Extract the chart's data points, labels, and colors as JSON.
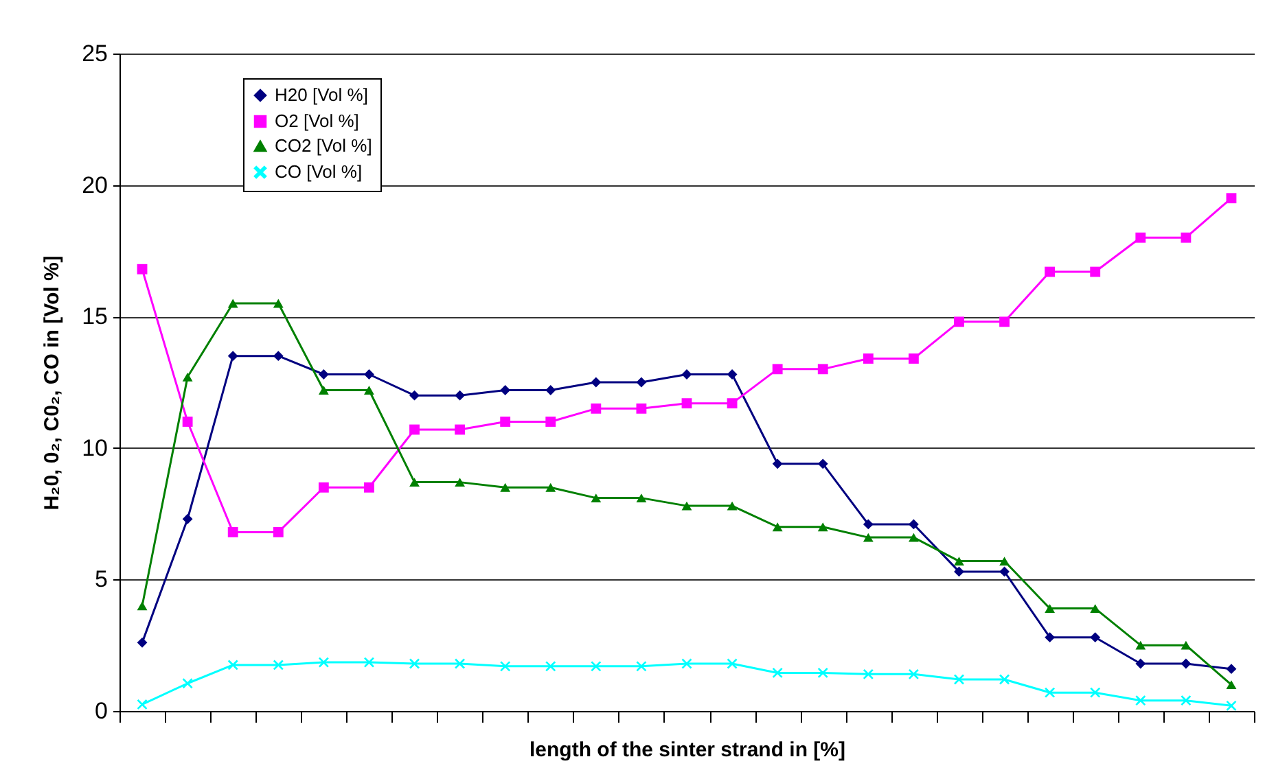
{
  "chart_data": {
    "type": "line",
    "xlabel": "length of the sinter strand in [%]",
    "ylabel": "H₂0, 0₂, C0₂, CO in [Vol %]",
    "categories": [
      null,
      null,
      null,
      null,
      null,
      null,
      null,
      null,
      null,
      null,
      null,
      null,
      null,
      null,
      null,
      null,
      null,
      null,
      null,
      null,
      null,
      null,
      null,
      null,
      null
    ],
    "series": [
      {
        "name": "H20 [Vol %]",
        "color": "#000080",
        "marker": "diamond",
        "values": [
          2.6,
          7.3,
          13.5,
          13.5,
          12.8,
          12.8,
          12.0,
          12.0,
          12.2,
          12.2,
          12.5,
          12.5,
          12.8,
          12.8,
          9.4,
          9.4,
          7.1,
          7.1,
          5.3,
          5.3,
          2.8,
          2.8,
          1.8,
          1.8,
          1.6
        ]
      },
      {
        "name": "O2 [Vol %]",
        "color": "#ff00ff",
        "marker": "square",
        "values": [
          16.8,
          11.0,
          6.8,
          6.8,
          8.5,
          8.5,
          10.7,
          10.7,
          11.0,
          11.0,
          11.5,
          11.5,
          11.7,
          11.7,
          13.0,
          13.0,
          13.4,
          13.4,
          14.8,
          14.8,
          16.7,
          16.7,
          18.0,
          18.0,
          19.5
        ]
      },
      {
        "name": "CO2 [Vol %]",
        "color": "#008000",
        "marker": "triangle",
        "values": [
          4.0,
          12.7,
          15.5,
          15.5,
          12.2,
          12.2,
          8.7,
          8.7,
          8.5,
          8.5,
          8.1,
          8.1,
          7.8,
          7.8,
          7.0,
          7.0,
          6.6,
          6.6,
          5.7,
          5.7,
          3.9,
          3.9,
          2.5,
          2.5,
          1.0
        ]
      },
      {
        "name": "CO [Vol %]",
        "color": "#00ffff",
        "marker": "cross",
        "values": [
          0.25,
          1.05,
          1.75,
          1.75,
          1.85,
          1.85,
          1.8,
          1.8,
          1.7,
          1.7,
          1.7,
          1.7,
          1.8,
          1.8,
          1.45,
          1.45,
          1.4,
          1.4,
          1.2,
          1.2,
          0.7,
          0.7,
          0.4,
          0.4,
          0.2
        ]
      }
    ],
    "ylim": [
      0,
      25
    ],
    "yticks": [
      0,
      5,
      10,
      15,
      20,
      25
    ],
    "grid": "y",
    "legend": "top left",
    "tick_labels": "y",
    "line_style": "solid"
  }
}
